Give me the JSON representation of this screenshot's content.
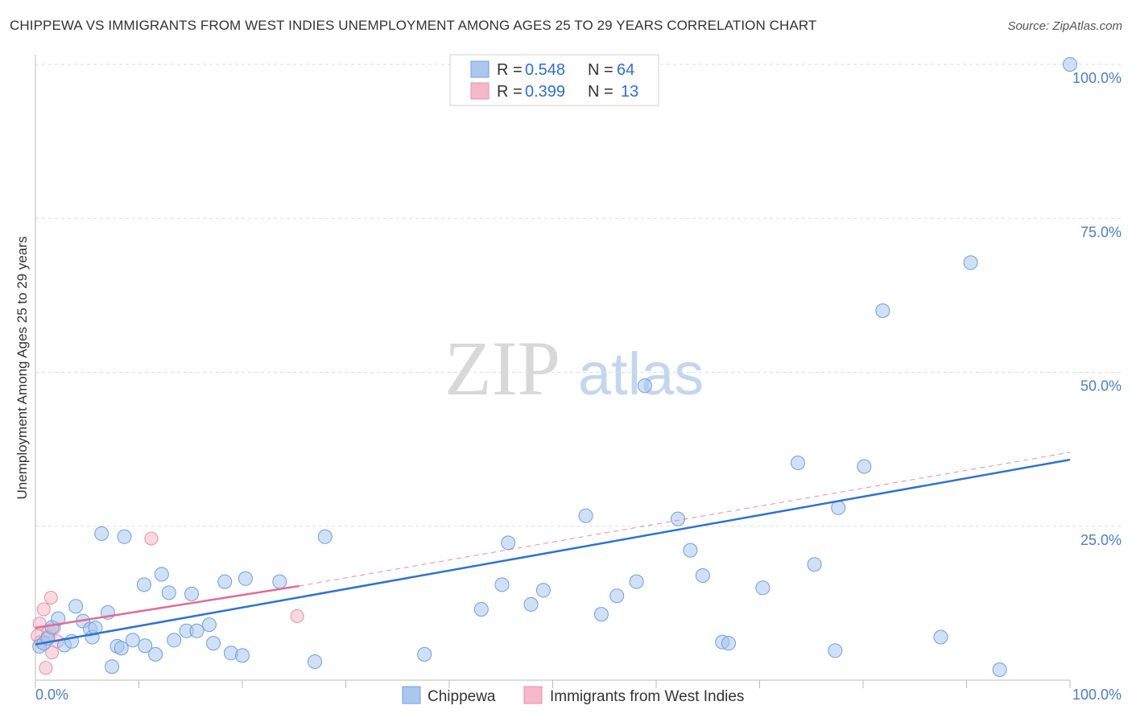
{
  "title": "CHIPPEWA VS IMMIGRANTS FROM WEST INDIES UNEMPLOYMENT AMONG AGES 25 TO 29 YEARS CORRELATION CHART",
  "source": "Source: ZipAtlas.com",
  "watermark": {
    "zip": "ZIP",
    "atlas": "atlas"
  },
  "colors": {
    "blue": "#a9c7ef",
    "blue_edge": "#6f9fdc",
    "blue_line": "#2f72d2",
    "pink": "#f5b8c9",
    "pink_edge": "#e590aa",
    "pink_line": "#e36b94",
    "grid": "#dddddd",
    "tick_text": "#4a7ec9"
  },
  "legend": {
    "rows": [
      {
        "r_label": "R =",
        "r_value": "0.548",
        "n_label": "N =",
        "n_value": "64"
      },
      {
        "r_label": "R =",
        "r_value": "0.399",
        "n_label": "N =",
        "n_value": "13"
      }
    ]
  },
  "chart_data": {
    "type": "scatter",
    "title": "CHIPPEWA VS IMMIGRANTS FROM WEST INDIES UNEMPLOYMENT AMONG AGES 25 TO 29 YEARS CORRELATION CHART",
    "xlabel": "",
    "ylabel": "Unemployment Among Ages 25 to 29 years",
    "xlim": [
      0,
      100
    ],
    "ylim": [
      0,
      100
    ],
    "x_tick_labels": [
      "0.0%",
      "100.0%"
    ],
    "y_tick_values": [
      25,
      50,
      75,
      100
    ],
    "y_tick_labels": [
      "25.0%",
      "50.0%",
      "75.0%",
      "100.0%"
    ],
    "grid": true,
    "series": [
      {
        "name": "Chippewa",
        "color": "blue",
        "trend": {
          "x": [
            0,
            100
          ],
          "y": [
            5.8,
            35.8
          ],
          "style": "solid"
        },
        "points": [
          [
            0.4,
            5.5
          ],
          [
            0.8,
            6.0
          ],
          [
            1.2,
            6.8
          ],
          [
            1.6,
            8.6
          ],
          [
            2.2,
            10.0
          ],
          [
            2.8,
            5.7
          ],
          [
            3.5,
            6.3
          ],
          [
            3.9,
            12.0
          ],
          [
            4.6,
            9.6
          ],
          [
            5.3,
            8.3
          ],
          [
            5.5,
            7.0
          ],
          [
            5.8,
            8.5
          ],
          [
            6.4,
            23.8
          ],
          [
            7.0,
            11.0
          ],
          [
            7.4,
            2.2
          ],
          [
            7.9,
            5.5
          ],
          [
            8.3,
            5.2
          ],
          [
            8.6,
            23.3
          ],
          [
            9.4,
            6.5
          ],
          [
            10.5,
            15.5
          ],
          [
            10.6,
            5.6
          ],
          [
            11.6,
            4.2
          ],
          [
            12.2,
            17.2
          ],
          [
            12.9,
            14.2
          ],
          [
            13.4,
            6.5
          ],
          [
            14.6,
            8.0
          ],
          [
            15.1,
            14.0
          ],
          [
            15.6,
            8.0
          ],
          [
            16.8,
            9.0
          ],
          [
            17.2,
            6.0
          ],
          [
            18.3,
            16.0
          ],
          [
            18.9,
            4.4
          ],
          [
            20.0,
            4.0
          ],
          [
            20.3,
            16.5
          ],
          [
            23.6,
            16.0
          ],
          [
            27.0,
            3.0
          ],
          [
            28.0,
            23.3
          ],
          [
            37.6,
            4.2
          ],
          [
            43.1,
            11.5
          ],
          [
            45.1,
            15.5
          ],
          [
            45.7,
            22.3
          ],
          [
            47.9,
            12.3
          ],
          [
            49.1,
            14.6
          ],
          [
            53.2,
            26.7
          ],
          [
            54.7,
            10.7
          ],
          [
            56.2,
            13.7
          ],
          [
            58.1,
            16.0
          ],
          [
            58.9,
            47.8
          ],
          [
            62.1,
            26.2
          ],
          [
            63.3,
            21.1
          ],
          [
            64.5,
            17.0
          ],
          [
            66.4,
            6.2
          ],
          [
            67.0,
            6.0
          ],
          [
            70.3,
            15.0
          ],
          [
            73.7,
            35.3
          ],
          [
            75.3,
            18.8
          ],
          [
            77.3,
            4.8
          ],
          [
            77.6,
            28.0
          ],
          [
            80.1,
            34.7
          ],
          [
            81.9,
            60.0
          ],
          [
            87.5,
            7.0
          ],
          [
            90.4,
            67.8
          ],
          [
            93.2,
            1.7
          ],
          [
            100.0,
            100.0
          ]
        ]
      },
      {
        "name": "Immigrants from West Indies",
        "color": "pink",
        "trend": {
          "x": [
            0,
            25.5
          ],
          "y": [
            8.5,
            15.3
          ],
          "style": "solid",
          "extended": {
            "x": [
              25.5,
              100
            ],
            "y": [
              15.3,
              37.0
            ],
            "style": "dashed"
          }
        },
        "points": [
          [
            0.2,
            7.2
          ],
          [
            0.4,
            9.2
          ],
          [
            0.5,
            6.2
          ],
          [
            0.8,
            11.5
          ],
          [
            1.0,
            2.0
          ],
          [
            1.2,
            7.2
          ],
          [
            1.3,
            8.0
          ],
          [
            1.5,
            13.4
          ],
          [
            1.6,
            4.5
          ],
          [
            1.8,
            8.5
          ],
          [
            2.1,
            6.3
          ],
          [
            11.2,
            23.0
          ],
          [
            25.3,
            10.4
          ]
        ]
      }
    ],
    "legend_entries": [
      "Chippewa",
      "Immigrants from West Indies"
    ]
  }
}
